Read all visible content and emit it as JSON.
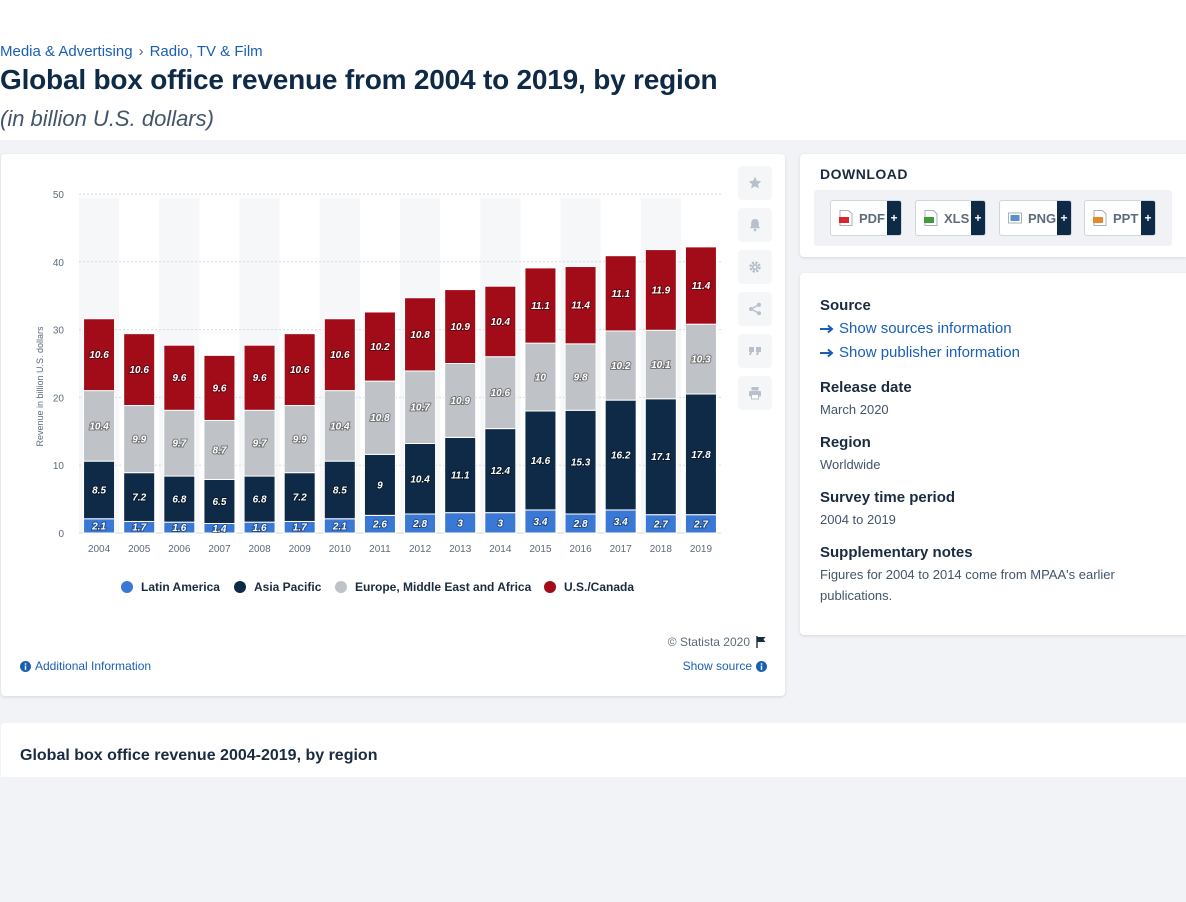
{
  "breadcrumb": {
    "items": [
      "Media & Advertising",
      "Radio, TV & Film"
    ],
    "separator": "›"
  },
  "page": {
    "title": "Global box office revenue from 2004 to 2019, by region",
    "subtitle": "(in billion U.S. dollars)"
  },
  "colors": {
    "latin_america": "#3a78d6",
    "asia_pacific": "#0e2a47",
    "emea": "#bfc2c6",
    "us_canada": "#a20b18",
    "link": "#1a5fb4"
  },
  "chart_data": {
    "type": "bar",
    "stacked": true,
    "categories": [
      "2004",
      "2005",
      "2006",
      "2007",
      "2008",
      "2009",
      "2010",
      "2011",
      "2012",
      "2013",
      "2014",
      "2015",
      "2016",
      "2017",
      "2018",
      "2019"
    ],
    "series": [
      {
        "name": "Latin America",
        "values": [
          2.1,
          1.7,
          1.6,
          1.4,
          1.6,
          1.7,
          2.1,
          2.6,
          2.8,
          3,
          3,
          3.4,
          2.8,
          3.4,
          2.7,
          2.7
        ]
      },
      {
        "name": "Asia Pacific",
        "values": [
          8.5,
          7.2,
          6.8,
          6.5,
          6.8,
          7.2,
          8.5,
          9,
          10.4,
          11.1,
          12.4,
          14.6,
          15.3,
          16.2,
          17.1,
          17.8
        ]
      },
      {
        "name": "Europe, Middle East and Africa",
        "values": [
          10.4,
          9.9,
          9.7,
          8.7,
          9.7,
          9.9,
          10.4,
          10.8,
          10.7,
          10.9,
          10.6,
          10,
          9.8,
          10.2,
          10.1,
          10.3
        ]
      },
      {
        "name": "U.S./Canada",
        "values": [
          10.6,
          10.6,
          9.6,
          9.6,
          9.6,
          10.6,
          10.6,
          10.2,
          10.8,
          10.9,
          10.4,
          11.1,
          11.4,
          11.1,
          11.9,
          11.4
        ]
      }
    ],
    "ylabel": "Revenue in billion U.S. dollars",
    "ylim": [
      0,
      50
    ],
    "yticks": [
      0,
      10,
      20,
      30,
      40,
      50
    ],
    "grid": true,
    "legend": "bottom",
    "data_labels": true
  },
  "chart_footer": {
    "copyright": "© Statista 2020",
    "additional": "Additional Information",
    "show_source": "Show source"
  },
  "download": {
    "title": "DOWNLOAD",
    "buttons": [
      {
        "label": "PDF",
        "icon": "pdf-file-icon",
        "color": "#d9262d"
      },
      {
        "label": "XLS",
        "icon": "xls-file-icon",
        "color": "#3f9b3f"
      },
      {
        "label": "PNG",
        "icon": "png-file-icon",
        "color": "#5b8fc9"
      },
      {
        "label": "PPT",
        "icon": "ppt-file-icon",
        "color": "#e58a2c"
      }
    ],
    "plus": "+"
  },
  "info": {
    "source_heading": "Source",
    "show_sources": "Show sources information",
    "show_publisher": "Show publisher information",
    "release_heading": "Release date",
    "release_value": "March 2020",
    "region_heading": "Region",
    "region_value": "Worldwide",
    "survey_heading": "Survey time period",
    "survey_value": "2004 to 2019",
    "notes_heading": "Supplementary notes",
    "notes_value": "Figures for 2004 to 2014 come from MPAA's earlier publications."
  },
  "bottom": {
    "title": "Global box office revenue 2004-2019, by region"
  }
}
